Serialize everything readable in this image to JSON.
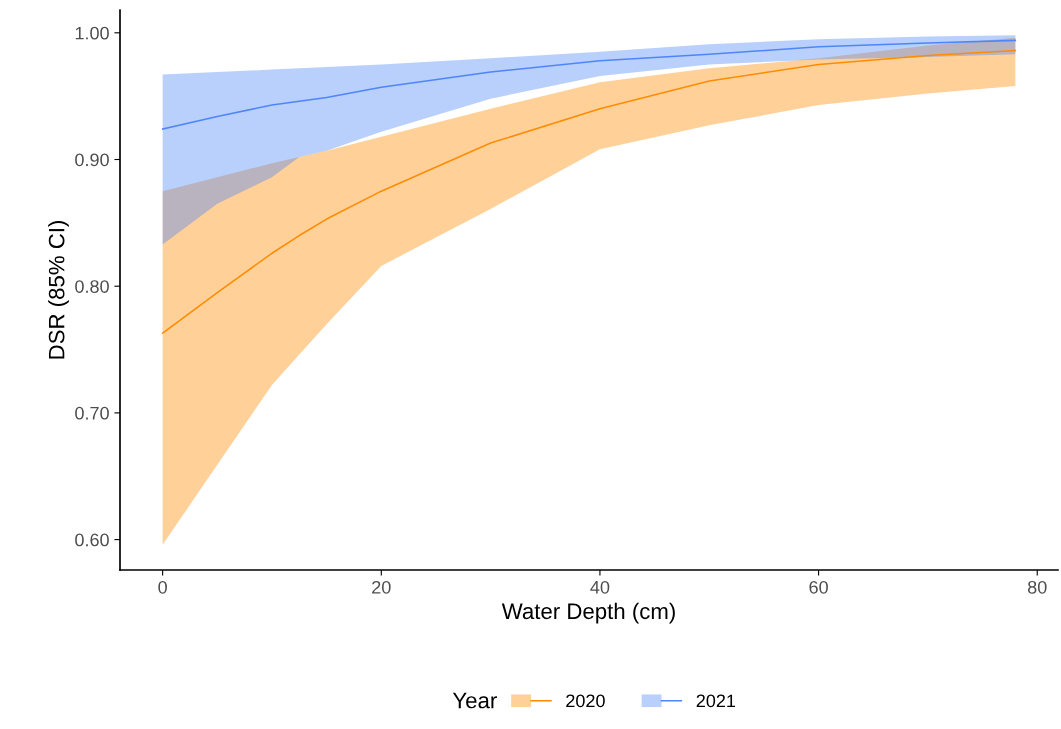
{
  "chart_data": {
    "type": "line",
    "xlabel": "Water Depth (cm)",
    "ylabel": "DSR (85% CI)",
    "legend_title": "Year",
    "legend": "bottom",
    "grid": false,
    "xlim": [
      -3.9,
      81.9
    ],
    "xticks": [
      0,
      20,
      40,
      60,
      80
    ],
    "ylim": [
      0.576,
      1.018
    ],
    "yticks": [
      {
        "value": 0.6,
        "label": "0.60"
      },
      {
        "value": 0.7,
        "label": "0.70"
      },
      {
        "value": 0.8,
        "label": "0.80"
      },
      {
        "value": 0.9,
        "label": "0.90"
      },
      {
        "value": 1.0,
        "label": "1.00"
      }
    ],
    "x": [
      0,
      5,
      10,
      12.5,
      15,
      20,
      30,
      40,
      50,
      60,
      70,
      78
    ],
    "series": [
      {
        "name": "2020",
        "color": "#ff8c00",
        "values": [
          0.763,
          0.795,
          0.826,
          0.84,
          0.853,
          0.875,
          0.913,
          0.94,
          0.962,
          0.975,
          0.982,
          0.986
        ],
        "lower": [
          0.596,
          0.659,
          0.722,
          0.746,
          0.77,
          0.816,
          0.861,
          0.908,
          0.927,
          0.943,
          0.952,
          0.958
        ],
        "upper": [
          0.875,
          0.886,
          0.897,
          0.902,
          0.907,
          0.918,
          0.94,
          0.961,
          0.972,
          0.98,
          0.99,
          0.996
        ]
      },
      {
        "name": "2021",
        "color": "#4f86f7",
        "values": [
          0.924,
          0.934,
          0.943,
          0.946,
          0.949,
          0.957,
          0.969,
          0.978,
          0.983,
          0.989,
          0.992,
          0.994
        ],
        "lower": [
          0.833,
          0.865,
          0.886,
          0.902,
          0.907,
          0.922,
          0.948,
          0.966,
          0.975,
          0.979,
          0.981,
          0.983
        ],
        "upper": [
          0.967,
          0.969,
          0.971,
          0.972,
          0.973,
          0.975,
          0.98,
          0.985,
          0.991,
          0.995,
          0.997,
          0.998
        ]
      }
    ]
  }
}
